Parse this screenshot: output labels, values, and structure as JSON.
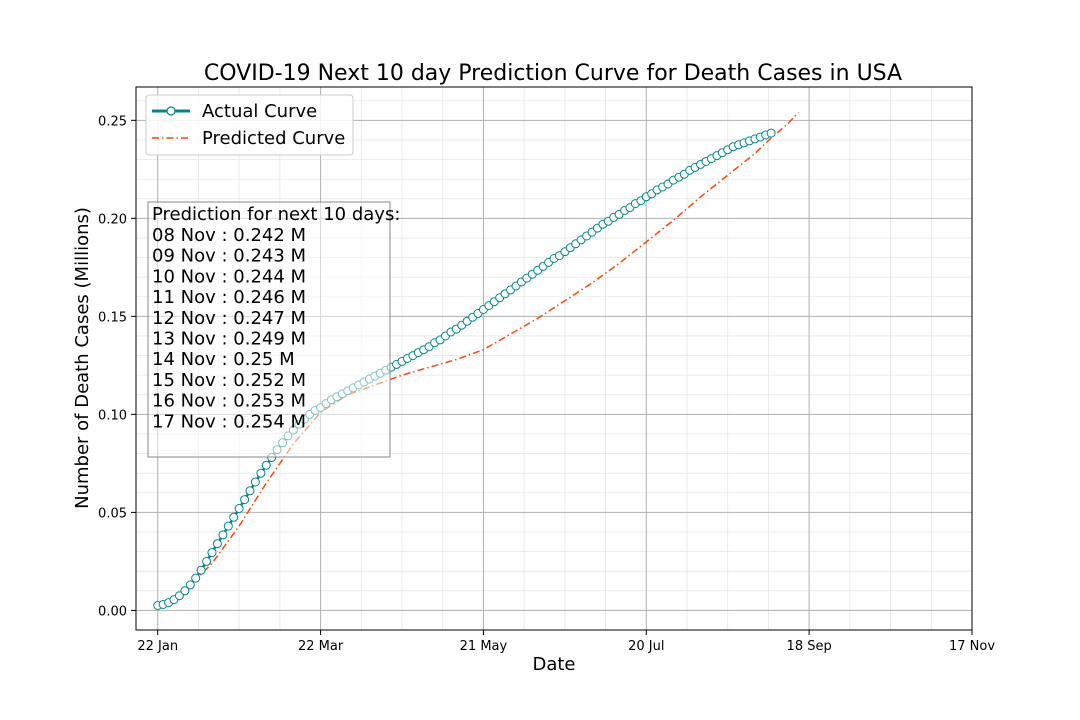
{
  "chart_data": {
    "type": "line",
    "title": "COVID-19 Next 10 day Prediction Curve for Death Cases in USA",
    "xlabel": "Date",
    "ylabel": "Number of Death Cases (Millions)",
    "ylim": [
      -0.01,
      0.267
    ],
    "xlim": [
      -8,
      300
    ],
    "x_ticks": [
      {
        "day": 0,
        "label": "22 Jan"
      },
      {
        "day": 60,
        "label": "22 Mar"
      },
      {
        "day": 120,
        "label": "21 May"
      },
      {
        "day": 180,
        "label": "20 Jul"
      },
      {
        "day": 240,
        "label": "18 Sep"
      },
      {
        "day": 300,
        "label": "17 Nov"
      }
    ],
    "y_ticks": [
      {
        "value": 0.0,
        "label": "0.00"
      },
      {
        "value": 0.05,
        "label": "0.05"
      },
      {
        "value": 0.1,
        "label": "0.10"
      },
      {
        "value": 0.15,
        "label": "0.15"
      },
      {
        "value": 0.2,
        "label": "0.20"
      },
      {
        "value": 0.25,
        "label": "0.25"
      }
    ],
    "grid": true,
    "legend_position": "top-left",
    "series": [
      {
        "name": "Actual Curve",
        "color": "#00868b",
        "marker": "circle",
        "x_days": [
          0,
          2,
          4,
          6,
          8,
          10,
          12,
          14,
          16,
          18,
          20,
          22,
          24,
          26,
          28,
          30,
          32,
          34,
          36,
          38,
          40,
          42,
          44,
          46,
          48,
          50,
          52,
          54,
          56,
          58,
          60,
          62,
          64,
          66,
          68,
          70,
          72,
          74,
          76,
          78,
          80,
          82,
          84,
          86,
          88,
          90,
          92,
          94,
          96,
          98,
          100,
          102,
          104,
          106,
          108,
          110,
          112,
          114,
          116,
          118,
          120,
          122,
          124,
          126,
          128,
          130,
          132,
          134,
          136,
          138,
          140,
          142,
          144,
          146,
          148,
          150,
          152,
          154,
          156,
          158,
          160,
          162,
          164,
          166,
          168,
          170,
          172,
          174,
          176,
          178,
          180,
          182,
          184,
          186,
          188,
          190,
          192,
          194,
          196,
          198,
          200,
          202,
          204,
          206,
          208,
          210,
          212,
          214,
          216,
          218,
          220,
          222,
          224,
          226
        ],
        "values": [
          0.0025,
          0.003,
          0.004,
          0.0055,
          0.0075,
          0.01,
          0.013,
          0.0165,
          0.0205,
          0.025,
          0.0295,
          0.034,
          0.0385,
          0.043,
          0.0475,
          0.052,
          0.0565,
          0.061,
          0.0655,
          0.07,
          0.074,
          0.078,
          0.082,
          0.0855,
          0.089,
          0.092,
          0.095,
          0.0975,
          0.1,
          0.102,
          0.1035,
          0.1055,
          0.1075,
          0.109,
          0.1105,
          0.112,
          0.1135,
          0.115,
          0.1165,
          0.118,
          0.1195,
          0.121,
          0.1225,
          0.124,
          0.1255,
          0.127,
          0.1285,
          0.13,
          0.1315,
          0.133,
          0.1345,
          0.1365,
          0.138,
          0.14,
          0.142,
          0.1435,
          0.1455,
          0.1475,
          0.1495,
          0.1515,
          0.1535,
          0.1555,
          0.1575,
          0.1595,
          0.1615,
          0.1635,
          0.1655,
          0.1675,
          0.1695,
          0.1715,
          0.1735,
          0.1755,
          0.1775,
          0.1795,
          0.181,
          0.183,
          0.185,
          0.187,
          0.189,
          0.191,
          0.193,
          0.195,
          0.197,
          0.1985,
          0.2005,
          0.202,
          0.204,
          0.2055,
          0.2075,
          0.209,
          0.211,
          0.2125,
          0.2145,
          0.216,
          0.2175,
          0.2195,
          0.221,
          0.2225,
          0.2245,
          0.226,
          0.2275,
          0.229,
          0.2305,
          0.232,
          0.2335,
          0.235,
          0.2365,
          0.2375,
          0.2385,
          0.2395,
          0.2405,
          0.2415,
          0.2425,
          0.2435
        ]
      },
      {
        "name": "Predicted Curve",
        "color": "#ff4500",
        "marker": "none",
        "line_style": "dash-dot",
        "x_days": [
          0,
          10,
          20,
          30,
          40,
          50,
          60,
          70,
          80,
          90,
          100,
          110,
          120,
          130,
          140,
          150,
          160,
          170,
          180,
          190,
          200,
          210,
          220,
          226,
          232,
          236
        ],
        "values": [
          0.002,
          0.01,
          0.024,
          0.043,
          0.065,
          0.085,
          0.101,
          0.11,
          0.115,
          0.12,
          0.124,
          0.128,
          0.133,
          0.141,
          0.149,
          0.158,
          0.167,
          0.177,
          0.188,
          0.199,
          0.211,
          0.222,
          0.233,
          0.241,
          0.248,
          0.254
        ]
      }
    ],
    "prediction_box": {
      "header": "Prediction for next 10 days:",
      "lines": [
        "08 Nov : 0.242 M",
        "09 Nov : 0.243 M",
        "10 Nov : 0.244 M",
        "11 Nov : 0.246 M",
        "12 Nov : 0.247 M",
        "13 Nov : 0.249 M",
        "14 Nov : 0.25 M",
        "15 Nov : 0.252 M",
        "16 Nov : 0.253 M",
        "17 Nov : 0.254 M"
      ]
    }
  }
}
